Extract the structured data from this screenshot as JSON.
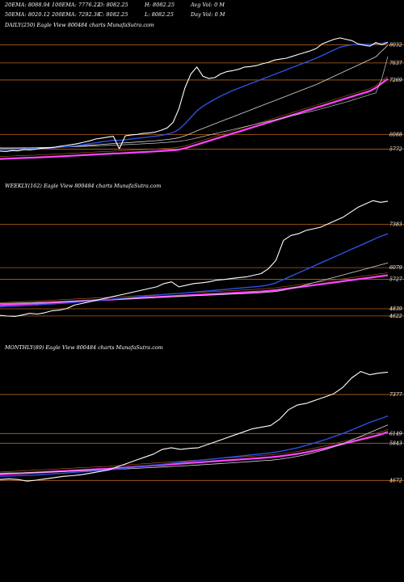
{
  "header": {
    "row1": [
      "20EMA: 8088.94",
      "100EMA: 7776.22",
      "O: 8082.25",
      "H: 8082.25",
      "Avg Vol: 0  M"
    ],
    "row2": [
      "50EMA: 8020.12",
      "200EMA: 7292.38",
      "C: 8082.25",
      "L: 8082.25",
      "Day Vol: 0  M"
    ]
  },
  "panels": {
    "daily": {
      "title": "DAILY(250) Eagle  View  800484  charts MunafaSutra.com",
      "levels": [
        "8032",
        "7637",
        "7269",
        "6088",
        "5772"
      ]
    },
    "weekly": {
      "title": "WEEKLY(162) Eagle  View  800484  charts MunafaSutra.com",
      "levels": [
        "7383",
        "6079",
        "5727",
        "4839",
        "4622"
      ]
    },
    "monthly": {
      "title": "MONTHLY(89) Eagle  View  800484  charts MunafaSutra.com",
      "levels": [
        "7377",
        "6149",
        "5843",
        "4672"
      ]
    }
  },
  "colors": {
    "background": "#000000",
    "price": "#ffffff",
    "ema20": "#2f4fe0",
    "ema50": "#d8d8d8",
    "ema100": "#c8c8c8",
    "ema200": "#ff44ff",
    "ema_long": "#b5651d",
    "level_line": "#b5651d"
  },
  "chart_data": [
    {
      "type": "line",
      "title": "DAILY(250) Eagle  View  800484  charts MunafaSutra.com",
      "ylim": [
        5500,
        8300
      ],
      "level_labels": [
        8032,
        7637,
        7269,
        6088,
        5772
      ],
      "series": [
        {
          "name": "price",
          "values": [
            5730,
            5720,
            5740,
            5735,
            5760,
            5755,
            5770,
            5790,
            5800,
            5810,
            5830,
            5850,
            5870,
            5890,
            5920,
            5950,
            5990,
            6010,
            6030,
            6050,
            5780,
            6060,
            6080,
            6090,
            6110,
            6120,
            6140,
            6180,
            6230,
            6350,
            6650,
            7100,
            7400,
            7550,
            7350,
            7300,
            7320,
            7400,
            7450,
            7470,
            7500,
            7550,
            7560,
            7580,
            7620,
            7650,
            7700,
            7720,
            7740,
            7780,
            7820,
            7860,
            7900,
            7950,
            8050,
            8100,
            8150,
            8180,
            8150,
            8120,
            8050,
            8020,
            8000,
            8080,
            8030,
            8082
          ]
        },
        {
          "name": "ema20",
          "values": [
            5760,
            5760,
            5765,
            5768,
            5772,
            5775,
            5780,
            5785,
            5792,
            5800,
            5810,
            5822,
            5835,
            5850,
            5868,
            5888,
            5908,
            5928,
            5945,
            5962,
            5960,
            5975,
            5990,
            6005,
            6020,
            6035,
            6050,
            6070,
            6095,
            6130,
            6200,
            6320,
            6460,
            6600,
            6700,
            6780,
            6850,
            6920,
            6980,
            7040,
            7090,
            7140,
            7190,
            7240,
            7290,
            7340,
            7390,
            7440,
            7490,
            7540,
            7590,
            7640,
            7690,
            7740,
            7800,
            7860,
            7920,
            7980,
            8010,
            8030,
            8040,
            8045,
            8040,
            8050,
            8060,
            8089
          ]
        },
        {
          "name": "ema50",
          "values": [
            5790,
            5790,
            5790,
            5792,
            5794,
            5796,
            5800,
            5804,
            5808,
            5813,
            5818,
            5824,
            5830,
            5838,
            5846,
            5855,
            5864,
            5874,
            5884,
            5894,
            5900,
            5908,
            5916,
            5925,
            5934,
            5944,
            5954,
            5966,
            5980,
            5996,
            6020,
            6060,
            6110,
            6170,
            6220,
            6270,
            6320,
            6370,
            6420,
            6470,
            6520,
            6570,
            6620,
            6670,
            6720,
            6770,
            6820,
            6870,
            6920,
            6970,
            7020,
            7070,
            7120,
            7170,
            7230,
            7290,
            7350,
            7410,
            7470,
            7530,
            7590,
            7650,
            7710,
            7770,
            7900,
            8020
          ]
        },
        {
          "name": "ema100",
          "values": [
            5800,
            5800,
            5800,
            5801,
            5802,
            5803,
            5805,
            5807,
            5809,
            5812,
            5815,
            5818,
            5822,
            5826,
            5830,
            5835,
            5840,
            5846,
            5852,
            5858,
            5862,
            5868,
            5874,
            5880,
            5887,
            5894,
            5901,
            5909,
            5918,
            5928,
            5940,
            5960,
            5985,
            6015,
            6045,
            6075,
            6105,
            6135,
            6165,
            6195,
            6225,
            6255,
            6285,
            6315,
            6345,
            6375,
            6405,
            6435,
            6465,
            6495,
            6525,
            6555,
            6585,
            6615,
            6650,
            6685,
            6720,
            6755,
            6790,
            6830,
            6870,
            6910,
            6950,
            6990,
            7300,
            7776
          ]
        },
        {
          "name": "ema200",
          "values": [
            5560,
            5565,
            5570,
            5575,
            5580,
            5585,
            5590,
            5596,
            5602,
            5608,
            5614,
            5620,
            5627,
            5634,
            5641,
            5648,
            5655,
            5662,
            5669,
            5676,
            5680,
            5687,
            5694,
            5701,
            5708,
            5715,
            5722,
            5730,
            5738,
            5746,
            5760,
            5790,
            5830,
            5870,
            5910,
            5950,
            5990,
            6030,
            6070,
            6110,
            6150,
            6190,
            6230,
            6270,
            6310,
            6350,
            6390,
            6430,
            6470,
            6510,
            6550,
            6590,
            6630,
            6670,
            6710,
            6750,
            6790,
            6830,
            6870,
            6910,
            6950,
            6990,
            7030,
            7100,
            7200,
            7292
          ]
        }
      ]
    },
    {
      "type": "line",
      "title": "WEEKLY(162) Eagle  View  800484  charts MunafaSutra.com",
      "ylim": [
        4400,
        8300
      ],
      "level_labels": [
        7383,
        6079,
        5727,
        4839,
        4622
      ],
      "series": [
        {
          "name": "price",
          "values": [
            4640,
            4620,
            4610,
            4650,
            4700,
            4680,
            4720,
            4780,
            4800,
            4850,
            4950,
            5000,
            5050,
            5100,
            5150,
            5200,
            5250,
            5300,
            5350,
            5400,
            5450,
            5500,
            5600,
            5650,
            5500,
            5550,
            5600,
            5620,
            5650,
            5700,
            5720,
            5750,
            5780,
            5800,
            5850,
            5900,
            6050,
            6300,
            6900,
            7050,
            7100,
            7200,
            7250,
            7300,
            7400,
            7500,
            7600,
            7750,
            7900,
            8000,
            8100,
            8050,
            8082
          ]
        },
        {
          "name": "ema20",
          "values": [
            4900,
            4910,
            4920,
            4930,
            4940,
            4955,
            4970,
            4985,
            5000,
            5015,
            5030,
            5050,
            5070,
            5090,
            5110,
            5130,
            5150,
            5170,
            5190,
            5210,
            5230,
            5250,
            5270,
            5290,
            5300,
            5320,
            5340,
            5360,
            5380,
            5400,
            5420,
            5440,
            5460,
            5480,
            5500,
            5520,
            5560,
            5620,
            5720,
            5820,
            5920,
            6020,
            6120,
            6220,
            6320,
            6420,
            6520,
            6620,
            6720,
            6820,
            6920,
            7020,
            7100
          ]
        },
        {
          "name": "ema50",
          "values": [
            5000,
            5005,
            5010,
            5015,
            5020,
            5028,
            5036,
            5044,
            5052,
            5060,
            5068,
            5078,
            5088,
            5098,
            5108,
            5118,
            5128,
            5138,
            5148,
            5158,
            5168,
            5178,
            5190,
            5202,
            5210,
            5220,
            5230,
            5240,
            5250,
            5260,
            5270,
            5280,
            5290,
            5300,
            5312,
            5324,
            5340,
            5360,
            5400,
            5450,
            5500,
            5560,
            5620,
            5680,
            5740,
            5800,
            5860,
            5920,
            5980,
            6040,
            6100,
            6160,
            6220
          ]
        },
        {
          "name": "ema200",
          "values": [
            4950,
            4960,
            4970,
            4980,
            4990,
            5000,
            5012,
            5024,
            5036,
            5048,
            5060,
            5072,
            5084,
            5096,
            5108,
            5120,
            5132,
            5144,
            5156,
            5168,
            5180,
            5192,
            5204,
            5216,
            5228,
            5240,
            5252,
            5264,
            5276,
            5288,
            5300,
            5312,
            5324,
            5336,
            5348,
            5360,
            5380,
            5400,
            5430,
            5460,
            5490,
            5520,
            5550,
            5580,
            5610,
            5640,
            5670,
            5700,
            5730,
            5760,
            5790,
            5820,
            5850
          ]
        }
      ]
    },
    {
      "type": "line",
      "title": "MONTHLY(89) Eagle  View  800484  charts MunafaSutra.com",
      "ylim": [
        4400,
        8600
      ],
      "level_labels": [
        7377,
        6149,
        5843,
        4672
      ],
      "series": [
        {
          "name": "price",
          "values": [
            4700,
            4720,
            4700,
            4650,
            4680,
            4720,
            4760,
            4800,
            4820,
            4850,
            4900,
            4950,
            5000,
            5100,
            5200,
            5300,
            5400,
            5500,
            5650,
            5700,
            5650,
            5680,
            5700,
            5800,
            5900,
            6000,
            6100,
            6200,
            6300,
            6350,
            6400,
            6600,
            6900,
            7050,
            7100,
            7200,
            7300,
            7400,
            7600,
            7900,
            8100,
            8000,
            8050,
            8082
          ]
        },
        {
          "name": "ema20",
          "values": [
            4800,
            4810,
            4820,
            4830,
            4840,
            4860,
            4880,
            4900,
            4920,
            4940,
            4960,
            4980,
            5000,
            5030,
            5060,
            5090,
            5120,
            5150,
            5180,
            5210,
            5240,
            5270,
            5300,
            5330,
            5360,
            5390,
            5420,
            5450,
            5480,
            5510,
            5540,
            5580,
            5640,
            5700,
            5780,
            5860,
            5950,
            6050,
            6150,
            6260,
            6380,
            6500,
            6600,
            6700
          ]
        },
        {
          "name": "ema50",
          "values": [
            4900,
            4905,
            4910,
            4915,
            4920,
            4930,
            4940,
            4950,
            4960,
            4972,
            4984,
            4996,
            5008,
            5022,
            5036,
            5050,
            5064,
            5078,
            5094,
            5110,
            5126,
            5142,
            5158,
            5176,
            5194,
            5212,
            5230,
            5250,
            5270,
            5290,
            5310,
            5340,
            5380,
            5430,
            5490,
            5560,
            5640,
            5730,
            5830,
            5940,
            6060,
            6180,
            6300,
            6420
          ]
        },
        {
          "name": "ema200",
          "values": [
            4860,
            4875,
            4890,
            4905,
            4920,
            4935,
            4950,
            4965,
            4980,
            4995,
            5010,
            5025,
            5040,
            5060,
            5080,
            5100,
            5120,
            5140,
            5160,
            5180,
            5200,
            5220,
            5240,
            5260,
            5280,
            5300,
            5320,
            5340,
            5360,
            5380,
            5400,
            5430,
            5470,
            5510,
            5560,
            5620,
            5680,
            5750,
            5820,
            5890,
            5960,
            6030,
            6100,
            6200
          ]
        }
      ]
    }
  ]
}
